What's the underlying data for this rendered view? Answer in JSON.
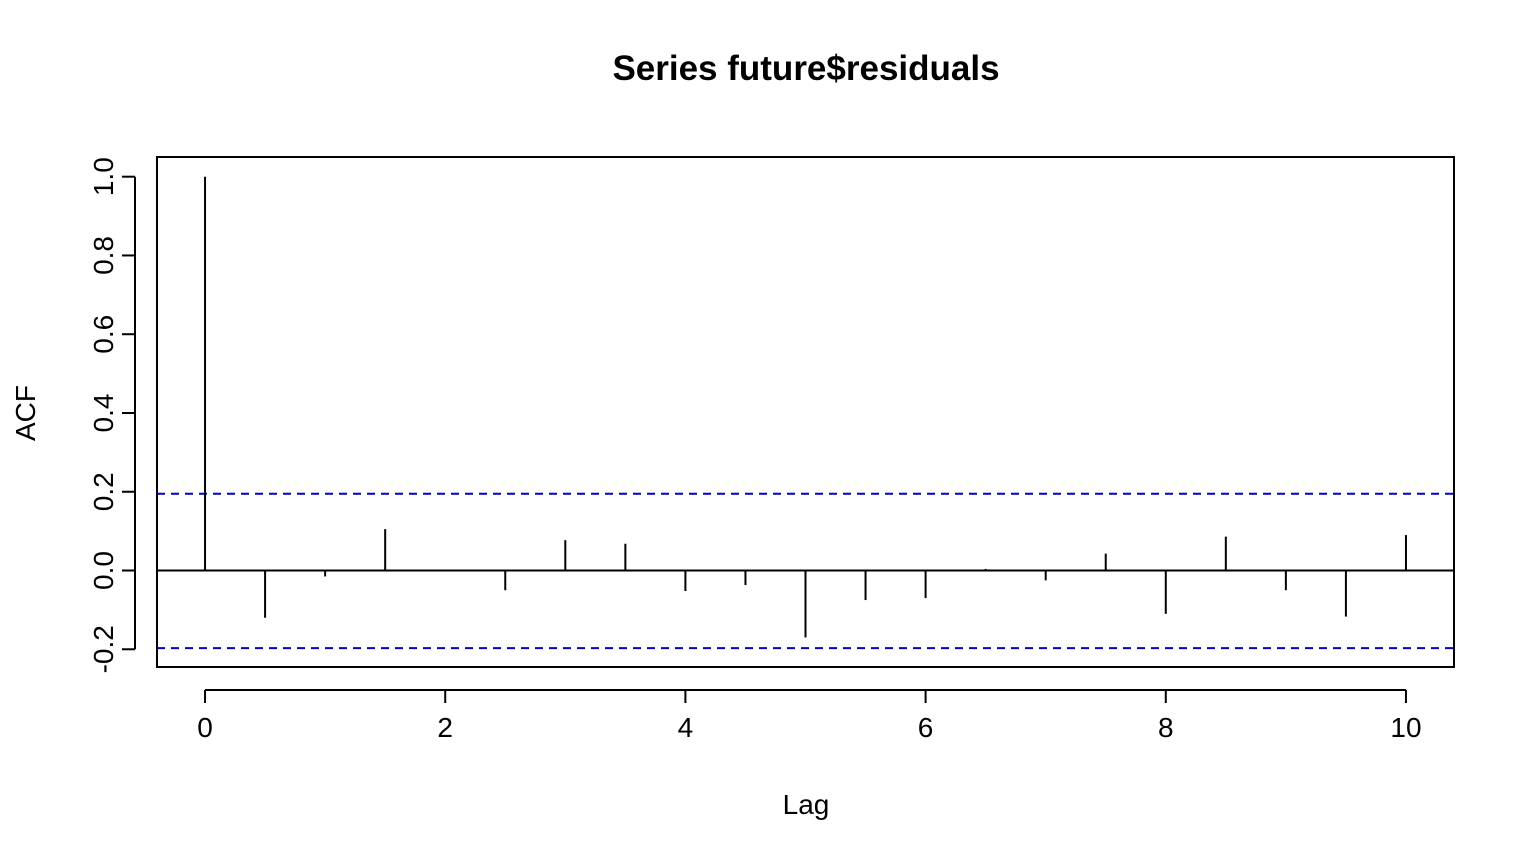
{
  "chart_data": {
    "type": "bar",
    "title": "Series  future$residuals",
    "xlabel": "Lag",
    "ylabel": "ACF",
    "xlim": [
      -0.4,
      10.4
    ],
    "ylim": [
      -0.245,
      1.05
    ],
    "x_ticks": [
      "0",
      "2",
      "4",
      "6",
      "8",
      "10"
    ],
    "y_ticks": [
      "-0.2",
      "0.0",
      "0.2",
      "0.4",
      "0.6",
      "0.8",
      "1.0"
    ],
    "series": [
      {
        "x": [
          0,
          0.5,
          1.0,
          1.5,
          2.0,
          2.5,
          3.0,
          3.5,
          4.0,
          4.5,
          5.0,
          5.5,
          6.0,
          6.5,
          7.0,
          7.5,
          8.0,
          8.5,
          9.0,
          9.5,
          10.0
        ],
        "values": [
          1.0,
          -0.12,
          -0.015,
          0.105,
          0.0,
          -0.05,
          0.077,
          0.068,
          -0.052,
          -0.037,
          -0.17,
          -0.075,
          -0.07,
          0.004,
          -0.025,
          0.043,
          -0.11,
          0.086,
          -0.05,
          -0.117,
          0.09
        ]
      }
    ],
    "confidence_bounds": [
      0.195,
      -0.197
    ],
    "confidence_color": "#0000cc",
    "grid": false
  }
}
